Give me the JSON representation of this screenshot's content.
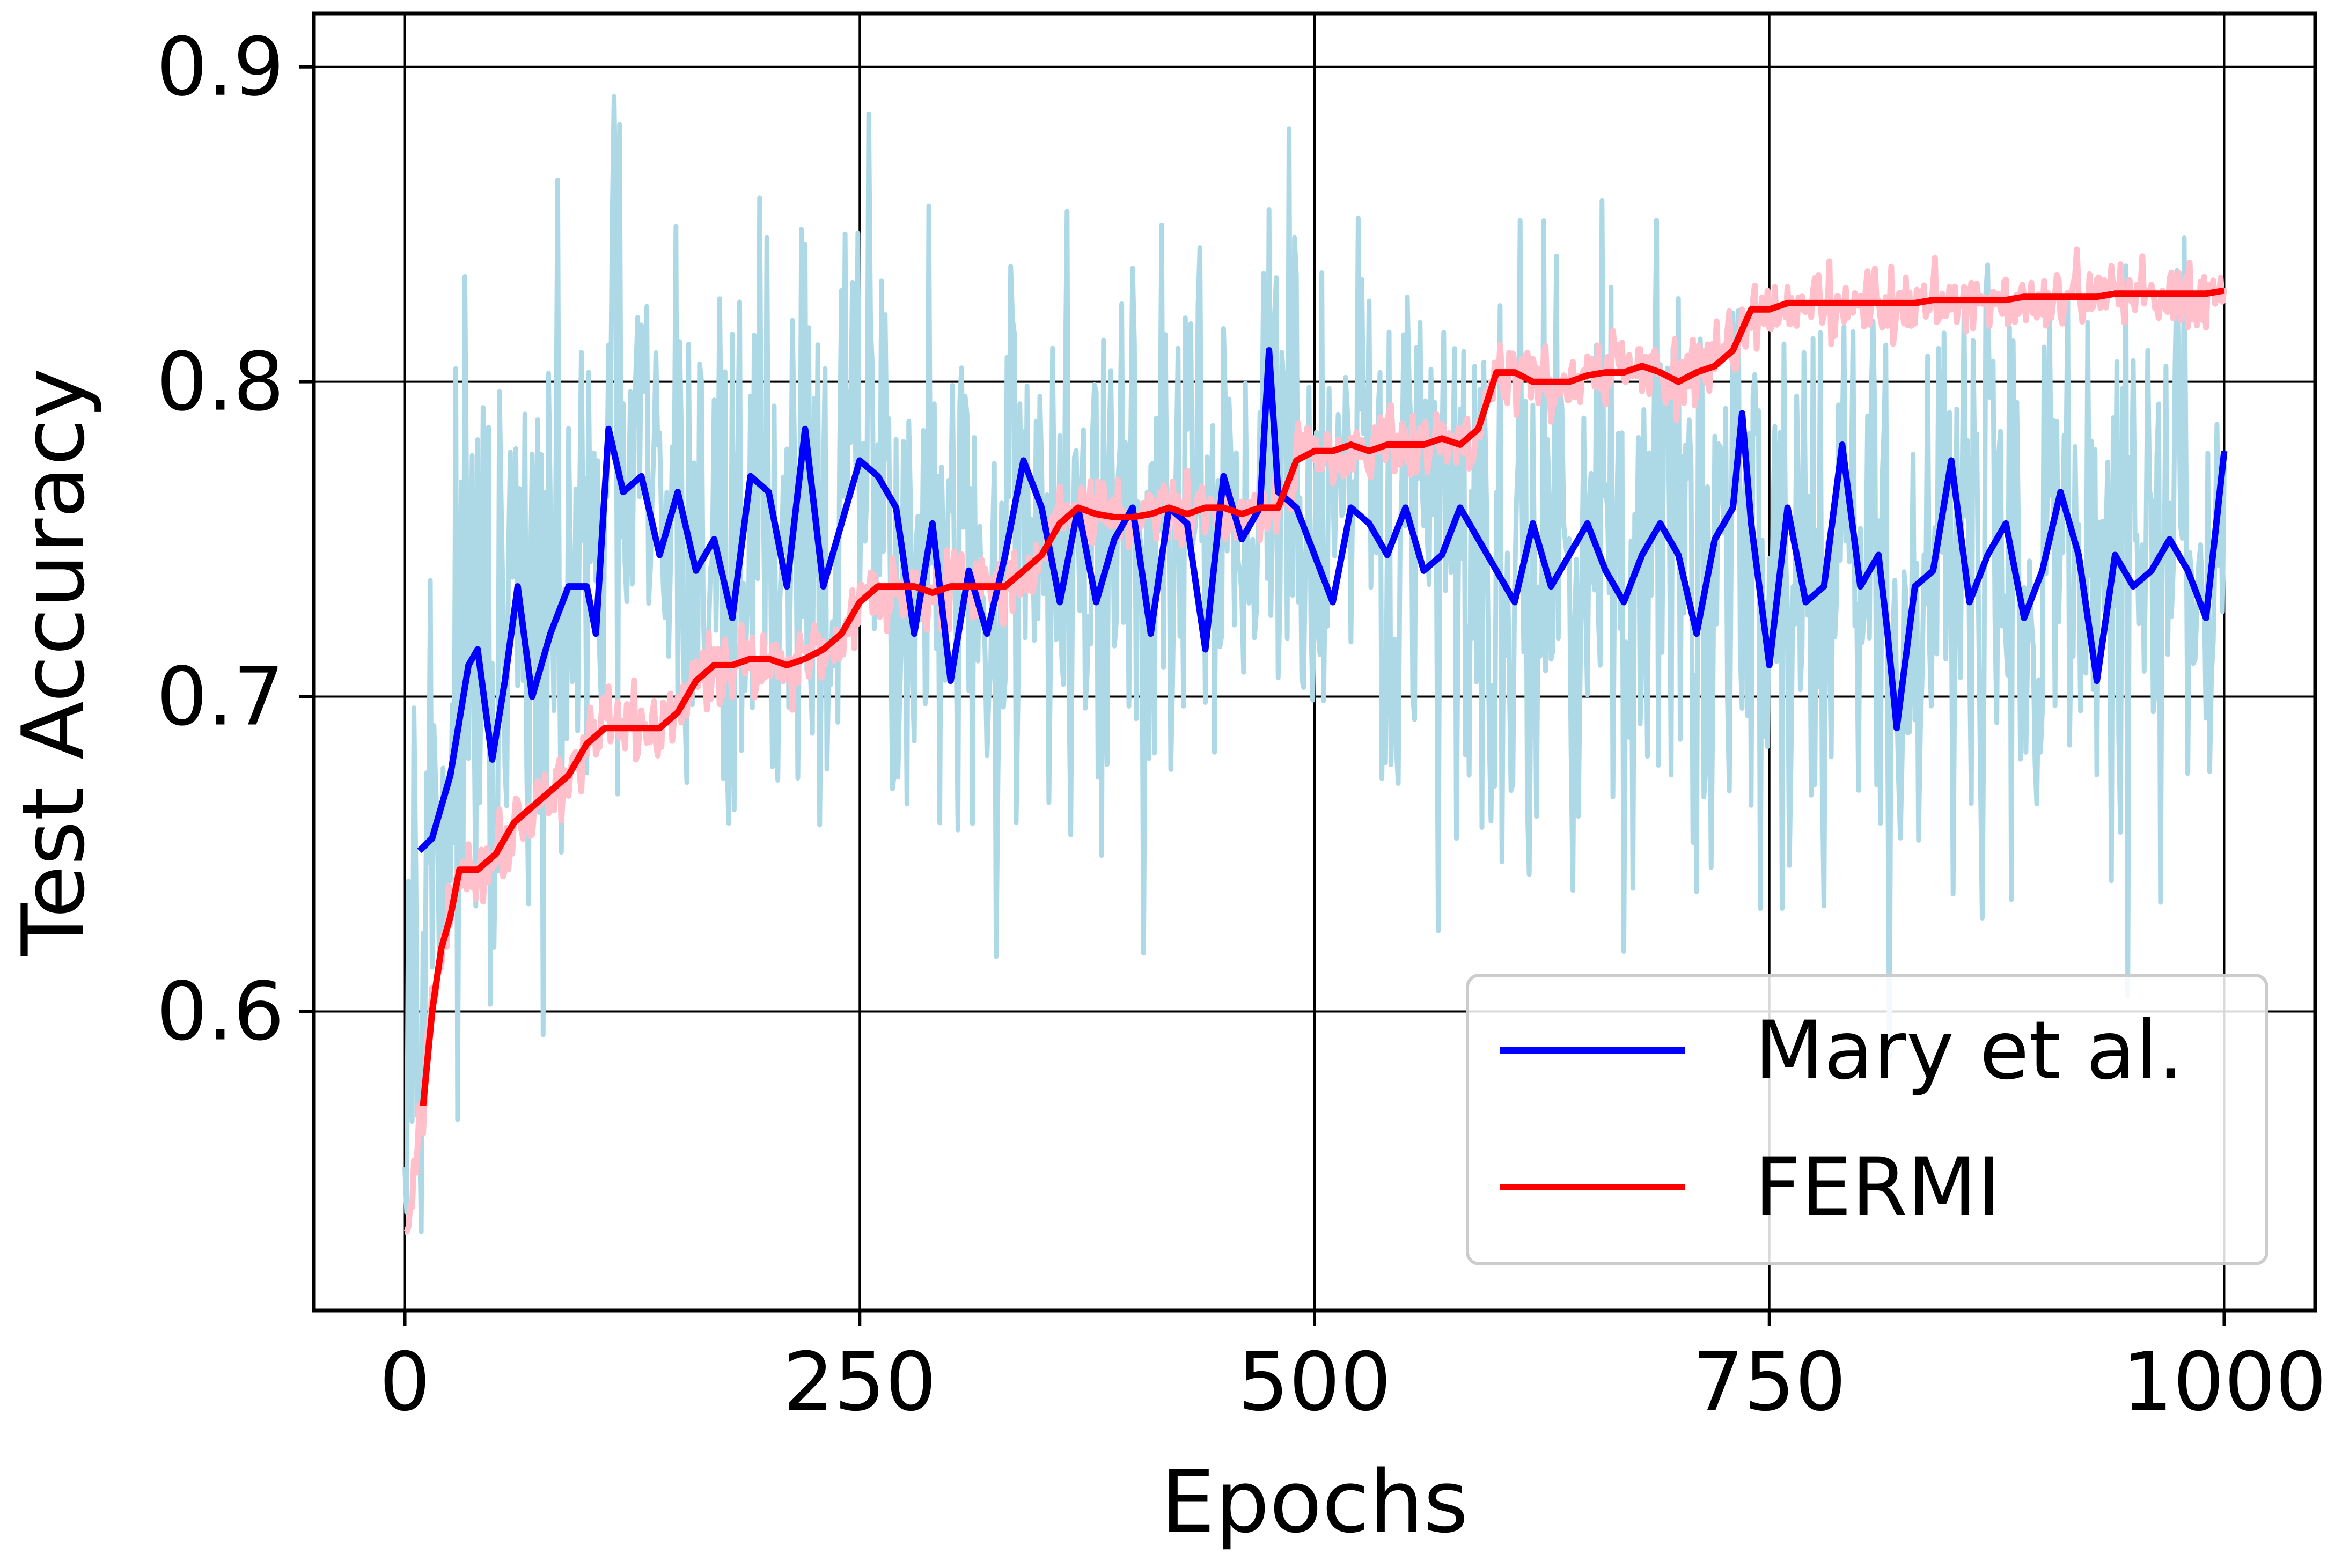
{
  "chart_data": {
    "type": "line",
    "title": "",
    "xlabel": "Epochs",
    "ylabel": "Test Accuracy",
    "xlim": [
      -50,
      1050
    ],
    "ylim": [
      0.505,
      0.917
    ],
    "x_ticks": [
      0,
      250,
      500,
      750,
      1000
    ],
    "x_tick_labels": [
      "0",
      "250",
      "500",
      "750",
      "1000"
    ],
    "y_ticks": [
      0.6,
      0.7,
      0.8,
      0.9
    ],
    "y_tick_labels": [
      "0.6",
      "0.7",
      "0.8",
      "0.9"
    ],
    "grid": true,
    "legend_position": "lower-right",
    "series": [
      {
        "name": "Mary et al.",
        "color": "#0000ff",
        "raw_color": "#add8e6",
        "raw_noise": 0.07,
        "x": [
          8,
          15,
          25,
          35,
          40,
          48,
          55,
          62,
          70,
          80,
          90,
          100,
          105,
          112,
          120,
          130,
          140,
          150,
          160,
          170,
          180,
          190,
          200,
          210,
          220,
          230,
          240,
          250,
          260,
          270,
          280,
          290,
          300,
          310,
          320,
          330,
          340,
          350,
          360,
          370,
          380,
          390,
          400,
          410,
          420,
          430,
          440,
          450,
          460,
          470,
          475,
          480,
          490,
          500,
          510,
          520,
          530,
          540,
          550,
          560,
          570,
          580,
          590,
          600,
          610,
          620,
          630,
          640,
          650,
          660,
          670,
          680,
          690,
          700,
          710,
          720,
          730,
          735,
          740,
          750,
          760,
          770,
          780,
          790,
          800,
          810,
          815,
          820,
          830,
          840,
          850,
          860,
          870,
          880,
          890,
          900,
          910,
          920,
          930,
          940,
          950,
          960,
          970,
          980,
          990,
          1000
        ],
        "y": [
          0.651,
          0.655,
          0.675,
          0.71,
          0.715,
          0.68,
          0.705,
          0.735,
          0.7,
          0.72,
          0.735,
          0.735,
          0.72,
          0.785,
          0.765,
          0.77,
          0.745,
          0.765,
          0.74,
          0.75,
          0.725,
          0.77,
          0.765,
          0.735,
          0.785,
          0.735,
          0.755,
          0.775,
          0.77,
          0.76,
          0.72,
          0.755,
          0.705,
          0.74,
          0.72,
          0.745,
          0.775,
          0.76,
          0.73,
          0.76,
          0.73,
          0.75,
          0.76,
          0.72,
          0.76,
          0.755,
          0.715,
          0.77,
          0.75,
          0.76,
          0.81,
          0.765,
          0.76,
          0.745,
          0.73,
          0.76,
          0.755,
          0.745,
          0.76,
          0.74,
          0.745,
          0.76,
          0.75,
          0.74,
          0.73,
          0.755,
          0.735,
          0.745,
          0.755,
          0.74,
          0.73,
          0.745,
          0.755,
          0.745,
          0.72,
          0.75,
          0.76,
          0.79,
          0.755,
          0.71,
          0.76,
          0.73,
          0.735,
          0.78,
          0.735,
          0.745,
          0.72,
          0.69,
          0.735,
          0.74,
          0.775,
          0.73,
          0.745,
          0.755,
          0.725,
          0.74,
          0.765,
          0.745,
          0.705,
          0.745,
          0.735,
          0.74,
          0.75,
          0.74,
          0.725,
          0.778
        ]
      },
      {
        "name": "FERMI",
        "color": "#ff0000",
        "raw_color": "#ffc0cb",
        "raw_noise": 0.008,
        "x": [
          10,
          15,
          20,
          25,
          30,
          40,
          50,
          60,
          70,
          80,
          90,
          100,
          110,
          120,
          130,
          140,
          150,
          160,
          170,
          180,
          190,
          200,
          210,
          220,
          230,
          240,
          250,
          260,
          270,
          280,
          290,
          300,
          310,
          320,
          330,
          340,
          350,
          360,
          370,
          380,
          390,
          400,
          410,
          420,
          430,
          440,
          450,
          460,
          470,
          480,
          490,
          500,
          510,
          520,
          530,
          540,
          550,
          560,
          570,
          580,
          590,
          600,
          610,
          620,
          630,
          640,
          650,
          660,
          670,
          680,
          690,
          700,
          710,
          720,
          730,
          740,
          750,
          760,
          770,
          780,
          790,
          800,
          810,
          820,
          830,
          840,
          850,
          860,
          870,
          880,
          890,
          900,
          910,
          920,
          930,
          940,
          950,
          960,
          970,
          980,
          990,
          1000
        ],
        "y": [
          0.57,
          0.6,
          0.62,
          0.63,
          0.645,
          0.645,
          0.65,
          0.66,
          0.665,
          0.67,
          0.675,
          0.685,
          0.69,
          0.69,
          0.69,
          0.69,
          0.695,
          0.705,
          0.71,
          0.71,
          0.712,
          0.712,
          0.71,
          0.712,
          0.715,
          0.72,
          0.73,
          0.735,
          0.735,
          0.735,
          0.733,
          0.735,
          0.735,
          0.735,
          0.735,
          0.74,
          0.745,
          0.755,
          0.76,
          0.758,
          0.757,
          0.757,
          0.758,
          0.76,
          0.758,
          0.76,
          0.76,
          0.758,
          0.76,
          0.76,
          0.775,
          0.778,
          0.778,
          0.78,
          0.778,
          0.78,
          0.78,
          0.78,
          0.782,
          0.78,
          0.785,
          0.803,
          0.803,
          0.8,
          0.8,
          0.8,
          0.802,
          0.803,
          0.803,
          0.805,
          0.803,
          0.8,
          0.803,
          0.805,
          0.81,
          0.823,
          0.823,
          0.825,
          0.825,
          0.825,
          0.825,
          0.825,
          0.825,
          0.825,
          0.825,
          0.826,
          0.826,
          0.826,
          0.826,
          0.826,
          0.827,
          0.827,
          0.827,
          0.827,
          0.827,
          0.828,
          0.828,
          0.828,
          0.828,
          0.828,
          0.828,
          0.829
        ]
      }
    ]
  }
}
